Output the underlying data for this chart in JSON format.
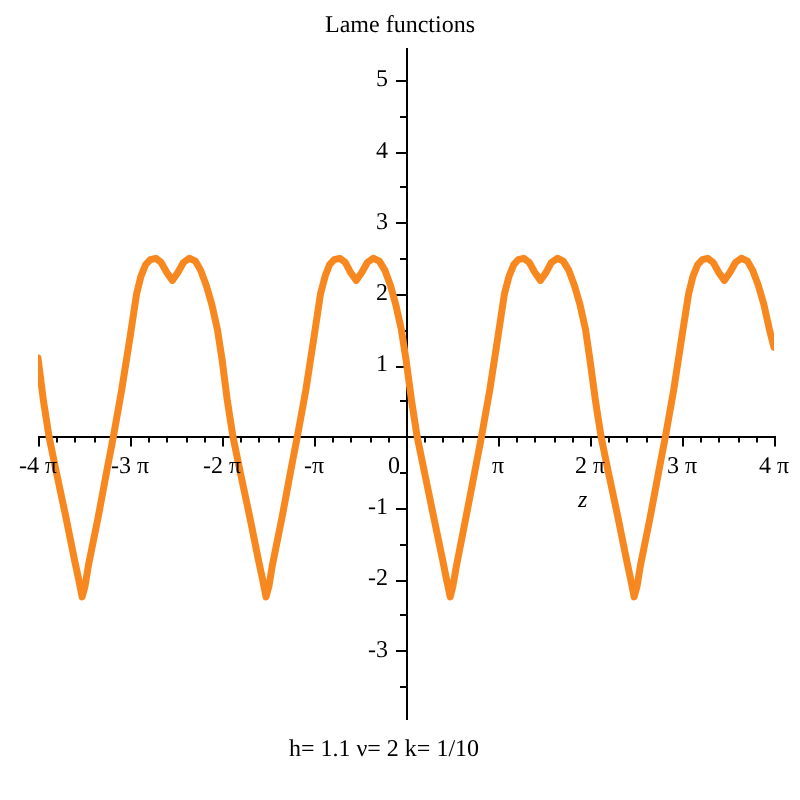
{
  "chart_data": {
    "type": "line",
    "title": "Lame functions",
    "xlabel": "z",
    "annotations": [
      "h= 1.1 ν= 2 k= 1/10"
    ],
    "xlim": [
      -12.566,
      12.566
    ],
    "ylim": [
      -3.95,
      5.45
    ],
    "xticks": [
      {
        "value": -12.566,
        "label": "-4 π"
      },
      {
        "value": -11.94,
        "label": null
      },
      {
        "value": -11.31,
        "label": null
      },
      {
        "value": -10.68,
        "label": null
      },
      {
        "value": -10.05,
        "label": null
      },
      {
        "value": -9.425,
        "label": "-3 π"
      },
      {
        "value": -8.8,
        "label": null
      },
      {
        "value": -8.17,
        "label": null
      },
      {
        "value": -7.54,
        "label": null
      },
      {
        "value": -6.91,
        "label": null
      },
      {
        "value": -6.283,
        "label": "-2 π"
      },
      {
        "value": -5.65,
        "label": null
      },
      {
        "value": -5.03,
        "label": null
      },
      {
        "value": -4.4,
        "label": null
      },
      {
        "value": -3.77,
        "label": null
      },
      {
        "value": -3.142,
        "label": "-π"
      },
      {
        "value": -2.51,
        "label": null
      },
      {
        "value": -1.88,
        "label": null
      },
      {
        "value": -1.26,
        "label": null
      },
      {
        "value": -0.63,
        "label": null
      },
      0,
      {
        "value": 0.63,
        "label": null
      },
      {
        "value": 1.26,
        "label": null
      },
      {
        "value": 1.88,
        "label": null
      },
      {
        "value": 2.51,
        "label": null
      },
      {
        "value": 3.142,
        "label": "π"
      },
      {
        "value": 3.77,
        "label": null
      },
      {
        "value": 4.4,
        "label": null
      },
      {
        "value": 5.03,
        "label": null
      },
      {
        "value": 5.65,
        "label": null
      },
      {
        "value": 6.283,
        "label": "2 π"
      },
      {
        "value": 6.91,
        "label": null
      },
      {
        "value": 7.54,
        "label": null
      },
      {
        "value": 8.17,
        "label": null
      },
      {
        "value": 8.8,
        "label": null
      },
      {
        "value": 9.425,
        "label": "3 π"
      },
      {
        "value": 10.05,
        "label": null
      },
      {
        "value": 10.68,
        "label": null
      },
      {
        "value": 11.31,
        "label": null
      },
      {
        "value": 11.94,
        "label": null
      },
      {
        "value": 12.566,
        "label": "4 π"
      }
    ],
    "yticks": [
      {
        "value": -3.5,
        "label": null
      },
      -3,
      {
        "value": -2.5,
        "label": null
      },
      -2,
      {
        "value": -1.5,
        "label": null
      },
      -1,
      {
        "value": -0.5,
        "label": null
      },
      {
        "value": 0.5,
        "label": null
      },
      1,
      {
        "value": 1.5,
        "label": null
      },
      2,
      {
        "value": 2.5,
        "label": null
      },
      3,
      {
        "value": 3.5,
        "label": null
      },
      4,
      {
        "value": 4.5,
        "label": null
      },
      5
    ],
    "x": [
      -12.566,
      -12.38,
      -12.19,
      -11.94,
      -11.62,
      -11.31,
      -11.18,
      -11.06,
      -10.96,
      -10.84,
      -10.52,
      -10.21,
      -9.99,
      -9.71,
      -9.42,
      -9.2,
      -9.05,
      -8.89,
      -8.73,
      -8.54,
      -8.36,
      -8.17,
      -7.98,
      -7.79,
      -7.6,
      -7.4,
      -7.19,
      -7.01,
      -6.82,
      -6.63,
      -6.44,
      -6.28,
      -6.1,
      -5.91,
      -5.66,
      -5.34,
      -5.03,
      -4.9,
      -4.78,
      -4.68,
      -4.56,
      -4.24,
      -3.93,
      -3.71,
      -3.42,
      -3.14,
      -2.92,
      -2.76,
      -2.61,
      -2.45,
      -2.26,
      -2.07,
      -1.89,
      -1.7,
      -1.51,
      -1.32,
      -1.12,
      -0.91,
      -0.72,
      -0.53,
      -0.35,
      -0.16,
      0,
      0.19,
      0.38,
      0.63,
      0.94,
      1.26,
      1.38,
      1.51,
      1.6,
      1.73,
      2.04,
      2.36,
      2.58,
      2.86,
      3.14,
      3.36,
      3.52,
      3.68,
      3.83,
      4.02,
      4.21,
      4.4,
      4.59,
      4.78,
      4.96,
      5.17,
      5.37,
      5.56,
      5.75,
      5.94,
      6.13,
      6.28,
      6.47,
      6.66,
      6.91,
      7.23,
      7.54,
      7.67,
      7.79,
      7.89,
      8.01,
      8.33,
      8.64,
      8.86,
      9.14,
      9.42,
      9.65,
      9.8,
      9.96,
      10.12,
      10.3,
      10.49,
      10.68,
      10.87,
      11.06,
      11.25,
      11.45,
      11.66,
      11.84,
      12.03,
      12.22,
      12.41,
      12.566
    ],
    "series": [
      {
        "color": "#f7881f",
        "values": [
          1.1,
          0.5,
          0,
          -0.5,
          -1.12,
          -1.75,
          -2,
          -2.25,
          -2.1,
          -1.8,
          -1.15,
          -0.47,
          0,
          0.65,
          1.4,
          2,
          2.25,
          2.41,
          2.48,
          2.5,
          2.44,
          2.3,
          2.19,
          2.3,
          2.44,
          2.5,
          2.46,
          2.33,
          2.12,
          1.85,
          1.5,
          1.08,
          0.5,
          0,
          -0.5,
          -1.12,
          -1.75,
          -2,
          -2.25,
          -2.1,
          -1.8,
          -1.15,
          -0.47,
          0,
          0.65,
          1.4,
          2,
          2.25,
          2.41,
          2.48,
          2.5,
          2.44,
          2.3,
          2.19,
          2.3,
          2.44,
          2.5,
          2.46,
          2.33,
          2.12,
          1.85,
          1.5,
          1.08,
          0.5,
          0,
          -0.5,
          -1.12,
          -1.75,
          -2,
          -2.25,
          -2.1,
          -1.8,
          -1.15,
          -0.47,
          0,
          0.65,
          1.4,
          2,
          2.25,
          2.41,
          2.48,
          2.5,
          2.44,
          2.3,
          2.19,
          2.3,
          2.44,
          2.5,
          2.46,
          2.33,
          2.12,
          1.85,
          1.5,
          1.08,
          0.5,
          0,
          -0.5,
          -1.12,
          -1.75,
          -2,
          -2.25,
          -2.1,
          -1.8,
          -1.15,
          -0.47,
          0,
          0.65,
          1.4,
          2,
          2.25,
          2.41,
          2.48,
          2.5,
          2.44,
          2.3,
          2.19,
          2.3,
          2.44,
          2.5,
          2.46,
          2.33,
          2.12,
          1.85,
          1.5,
          1.25
        ]
      }
    ]
  }
}
